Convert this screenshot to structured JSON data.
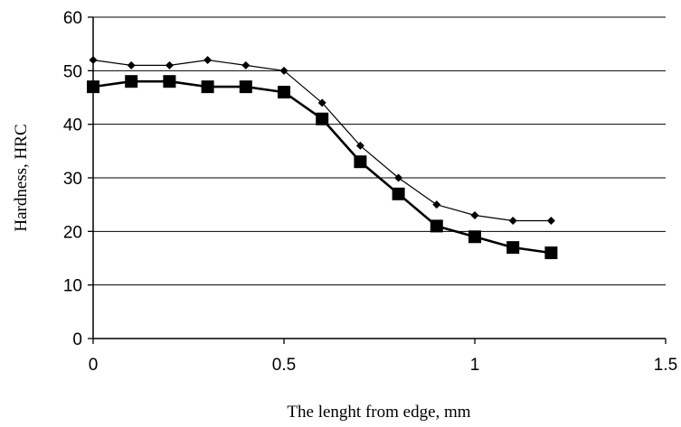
{
  "chart_data": {
    "type": "line",
    "title": "",
    "xlabel": "The lenght from edge, mm",
    "ylabel": "Hardness, HRC",
    "xlim": [
      0,
      1.5
    ],
    "ylim": [
      0,
      60
    ],
    "x_ticks": [
      "0",
      "0.5",
      "1",
      "1.5"
    ],
    "y_ticks": [
      "0",
      "10",
      "20",
      "30",
      "40",
      "50",
      "60"
    ],
    "grid": "horizontal",
    "legend": "none",
    "x": [
      0,
      0.1,
      0.2,
      0.3,
      0.4,
      0.5,
      0.6,
      0.7,
      0.8,
      0.9,
      1.0,
      1.1,
      1.2
    ],
    "series": [
      {
        "marker": "diamond",
        "color": "#000000",
        "values": [
          52,
          51,
          51,
          52,
          51,
          50,
          44,
          36,
          30,
          25,
          23,
          22,
          22
        ]
      },
      {
        "marker": "square",
        "color": "#000000",
        "values": [
          47,
          48,
          48,
          47,
          47,
          46,
          41,
          33,
          27,
          21,
          19,
          17,
          16
        ]
      }
    ]
  }
}
